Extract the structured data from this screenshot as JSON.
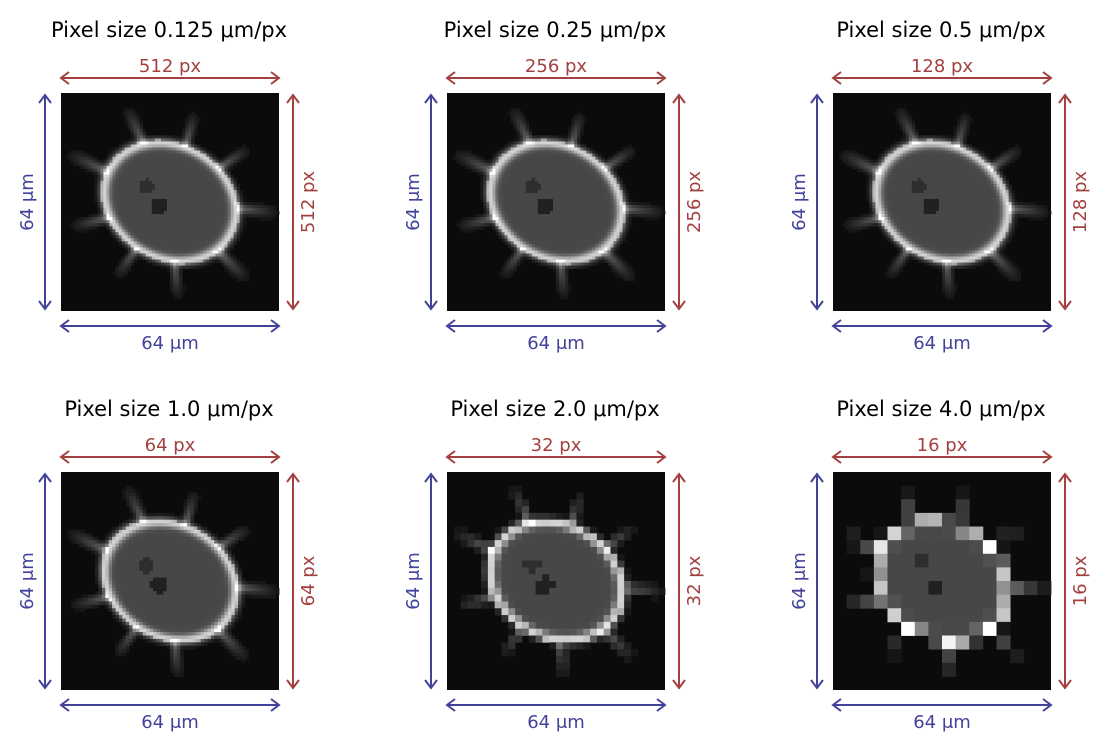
{
  "figure": {
    "colors": {
      "red": "#a34040",
      "blue": "#42429a",
      "title": "#000000"
    },
    "panels": [
      {
        "title": "Pixel size 0.125 μm/px",
        "px_label": "512 px",
        "um_label": "64 μm",
        "pixels": 512
      },
      {
        "title": "Pixel size 0.25 μm/px",
        "px_label": "256 px",
        "um_label": "64 μm",
        "pixels": 256
      },
      {
        "title": "Pixel size 0.5 μm/px",
        "px_label": "128 px",
        "um_label": "64 μm",
        "pixels": 128
      },
      {
        "title": "Pixel size 1.0 μm/px",
        "px_label": "64 px",
        "um_label": "64 μm",
        "pixels": 64
      },
      {
        "title": "Pixel size 2.0 μm/px",
        "px_label": "32 px",
        "um_label": "64 μm",
        "pixels": 32
      },
      {
        "title": "Pixel size 4.0 μm/px",
        "px_label": "16 px",
        "um_label": "64 μm",
        "pixels": 16
      }
    ]
  }
}
